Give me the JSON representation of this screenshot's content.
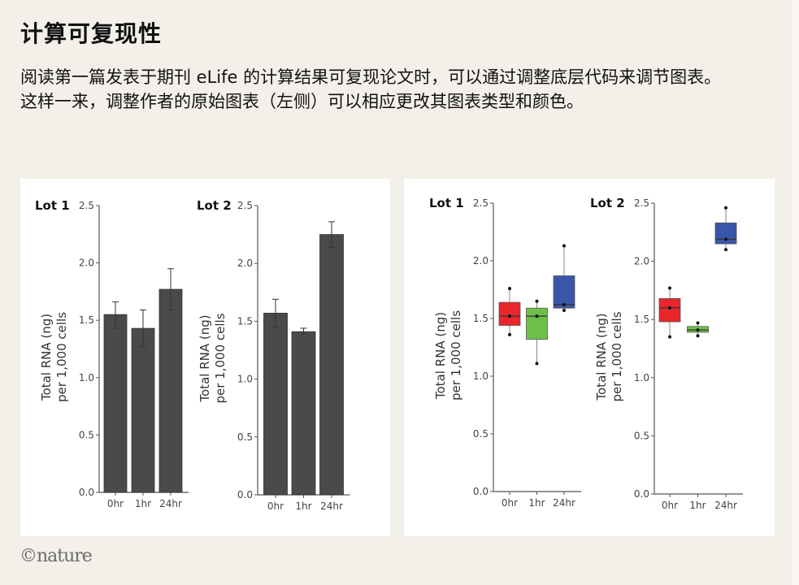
{
  "header": {
    "title": "计算可复现性",
    "description": "阅读第一篇发表于期刊 eLife 的计算结果可复现论文时，可以通过调整底层代码来调节图表。这样一来，调整作者的原始图表（左侧）可以相应更改其图表类型和颜色。"
  },
  "footer": {
    "logo": "©nature"
  },
  "chart_data": [
    {
      "type": "bar",
      "title": "Lot 1",
      "ylabel": "Total RNA (ng)\nper 1,000 cells",
      "categories": [
        "0hr",
        "1hr",
        "24hr"
      ],
      "values": [
        1.55,
        1.43,
        1.77
      ],
      "error_low": [
        1.43,
        1.27,
        1.59
      ],
      "error_high": [
        1.66,
        1.59,
        1.95
      ],
      "ylim": [
        0,
        2.5
      ],
      "yticks": [
        "0.0",
        "0.5",
        "1.0",
        "1.5",
        "2.0",
        "2.5"
      ],
      "color": "#4a4a4a",
      "grid": false
    },
    {
      "type": "bar",
      "title": "Lot 2",
      "ylabel": "Total RNA (ng)\nper 1,000 cells",
      "categories": [
        "0hr",
        "1hr",
        "24hr"
      ],
      "values": [
        1.57,
        1.41,
        2.25
      ],
      "error_low": [
        1.45,
        1.39,
        2.14
      ],
      "error_high": [
        1.69,
        1.44,
        2.36
      ],
      "ylim": [
        0,
        2.5
      ],
      "yticks": [
        "0.0",
        "0.5",
        "1.0",
        "1.5",
        "2.0",
        "2.5"
      ],
      "color": "#4a4a4a",
      "grid": false
    },
    {
      "type": "box",
      "title": "Lot 1",
      "ylabel": "Total RNA (ng)\nper 1,000 cells",
      "categories": [
        "0hr",
        "1hr",
        "24hr"
      ],
      "boxes": [
        {
          "min": 1.36,
          "q1": 1.44,
          "median": 1.52,
          "q3": 1.64,
          "max": 1.76
        },
        {
          "min": 1.11,
          "q1": 1.32,
          "median": 1.52,
          "q3": 1.59,
          "max": 1.65
        },
        {
          "min": 1.57,
          "q1": 1.59,
          "median": 1.62,
          "q3": 1.87,
          "max": 2.13
        }
      ],
      "ylim": [
        0,
        2.5
      ],
      "yticks": [
        "0.0",
        "0.5",
        "1.0",
        "1.5",
        "2.0",
        "2.5"
      ],
      "colors": [
        "#e8262c",
        "#6cc04a",
        "#3a56a8"
      ],
      "grid": false
    },
    {
      "type": "box",
      "title": "Lot 2",
      "ylabel": "Total RNA (ng)\nper 1,000 cells",
      "categories": [
        "0hr",
        "1hr",
        "24hr"
      ],
      "boxes": [
        {
          "min": 1.35,
          "q1": 1.48,
          "median": 1.6,
          "q3": 1.68,
          "max": 1.77
        },
        {
          "min": 1.36,
          "q1": 1.39,
          "median": 1.41,
          "q3": 1.44,
          "max": 1.47
        },
        {
          "min": 2.1,
          "q1": 2.15,
          "median": 2.19,
          "q3": 2.33,
          "max": 2.46
        }
      ],
      "ylim": [
        0,
        2.5
      ],
      "yticks": [
        "0.0",
        "0.5",
        "1.0",
        "1.5",
        "2.0",
        "2.5"
      ],
      "colors": [
        "#e8262c",
        "#6cc04a",
        "#3a56a8"
      ],
      "grid": false
    }
  ]
}
